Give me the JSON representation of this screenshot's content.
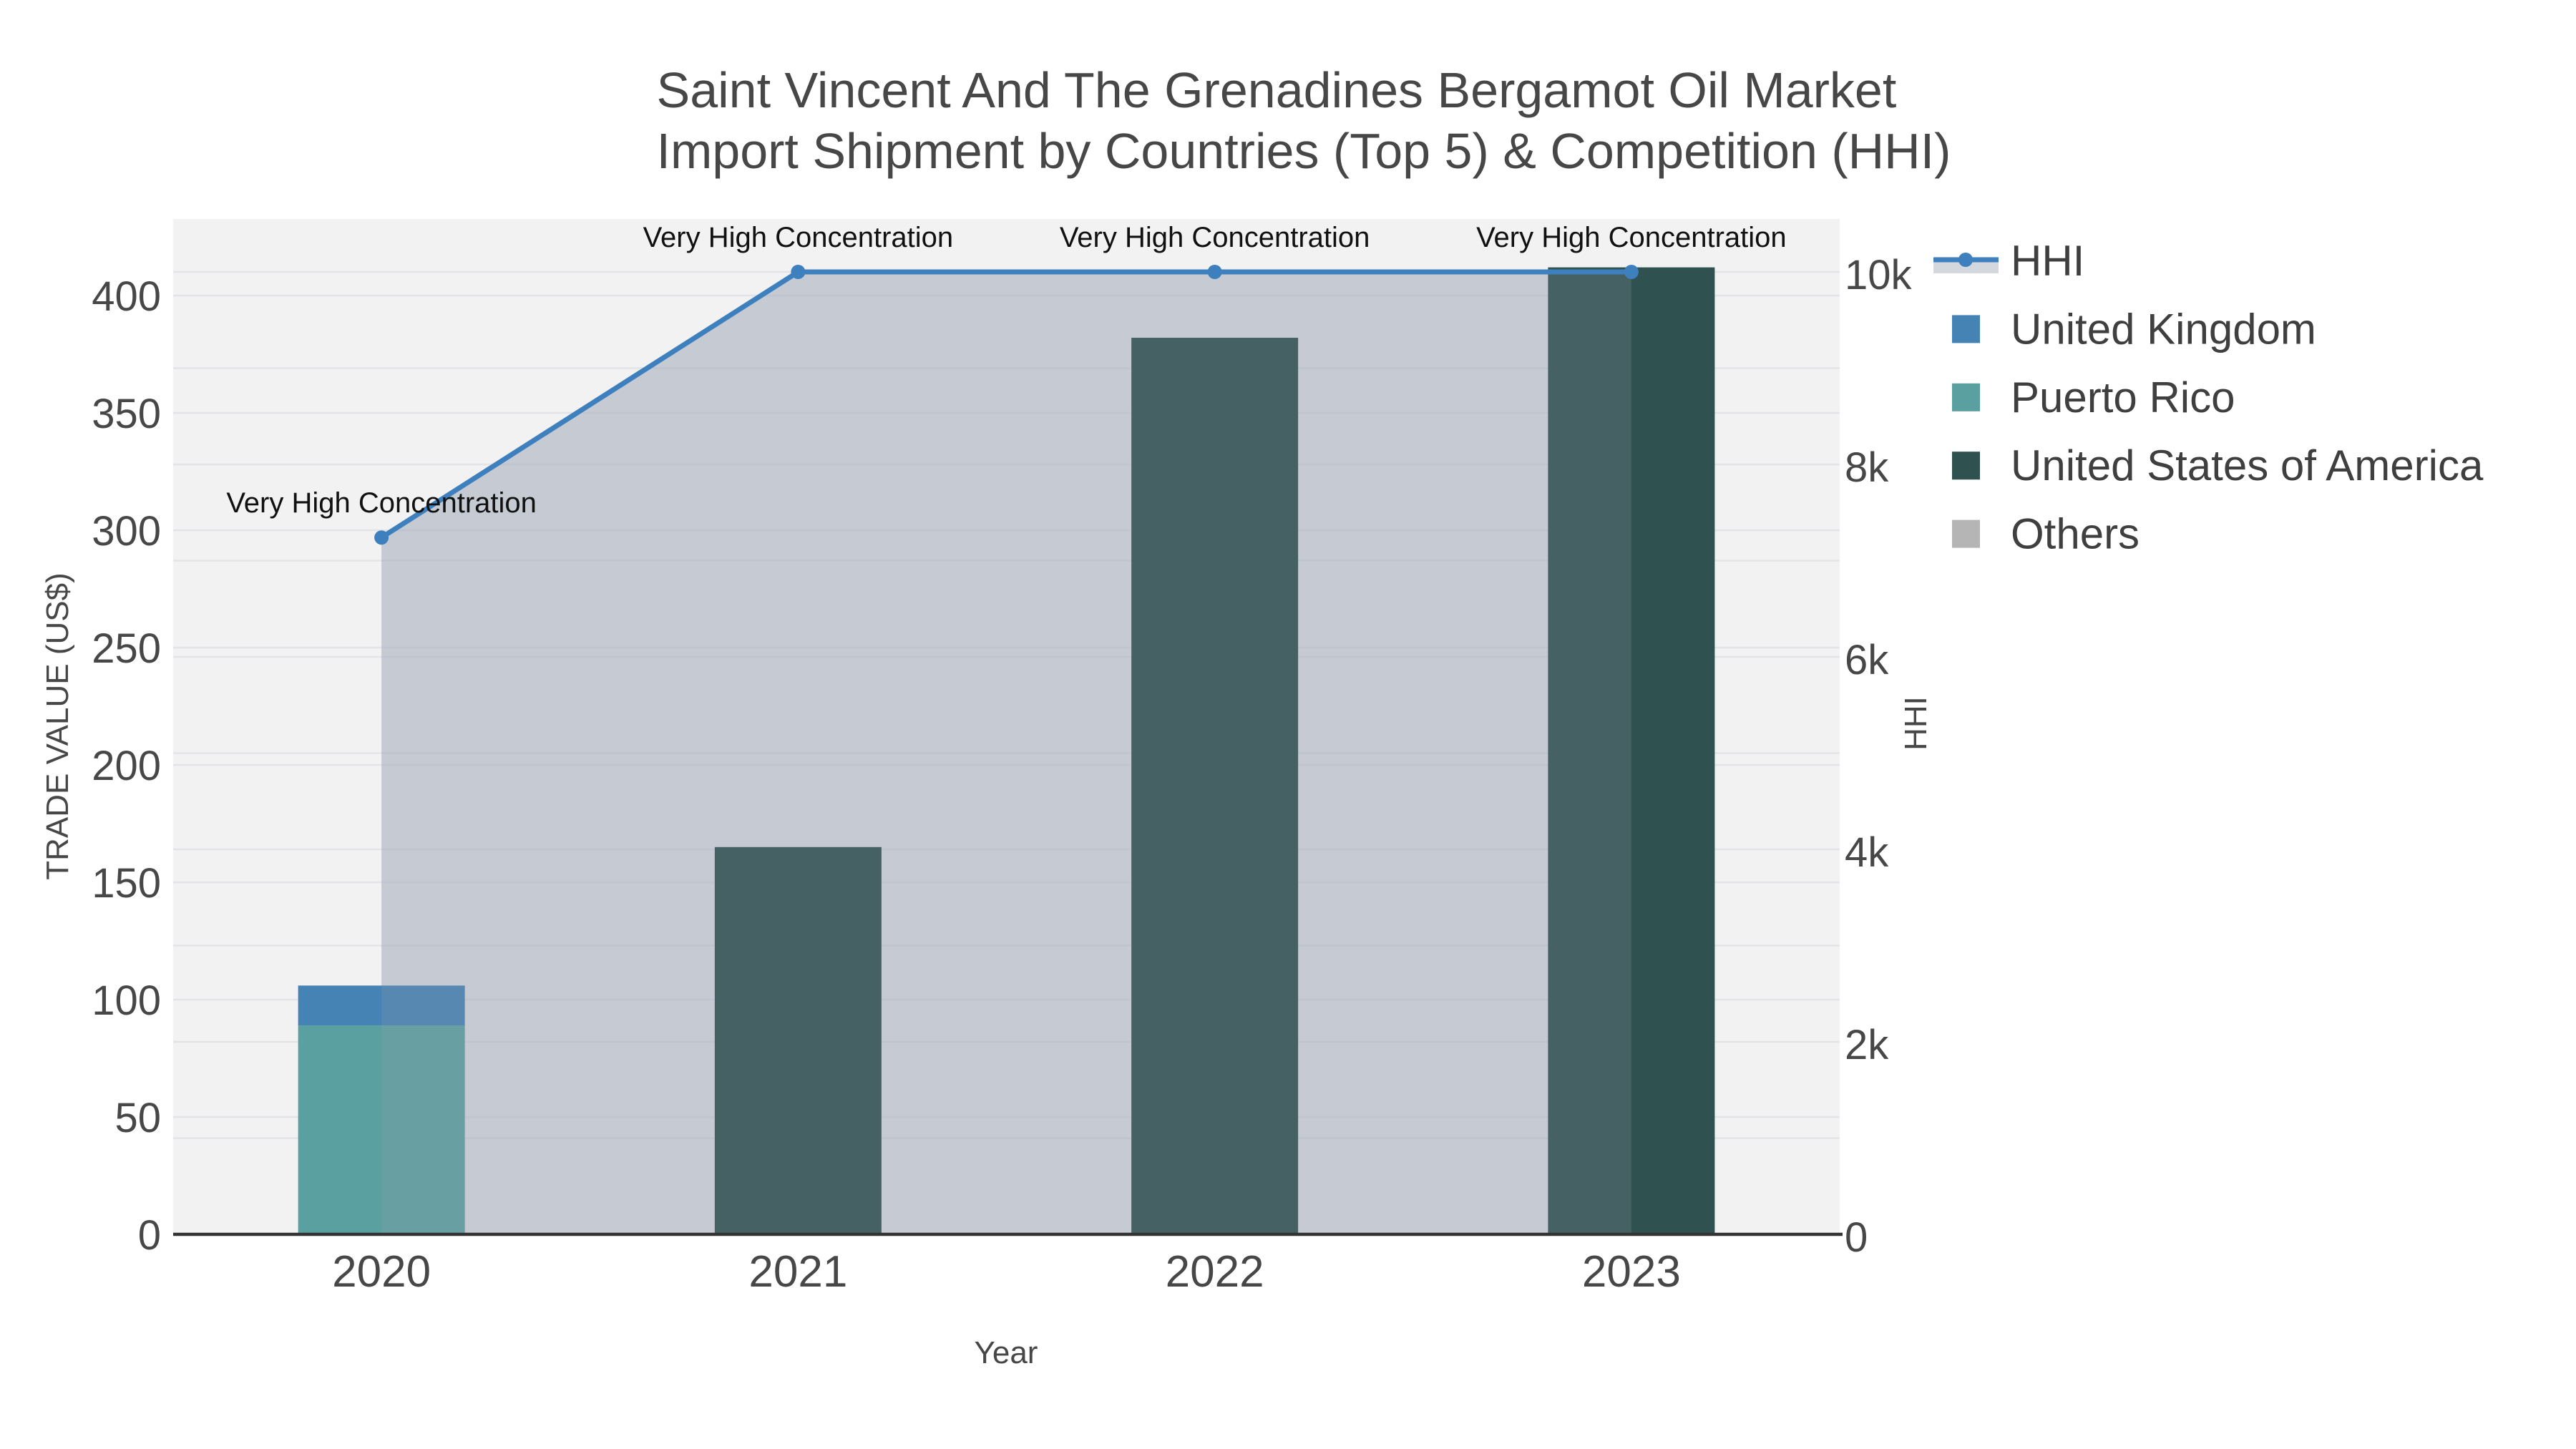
{
  "chart_data": {
    "type": "bar",
    "subtype": "stacked-bars-with-hhi-line-and-area",
    "title_lines": [
      "Saint Vincent And The Grenadines Bergamot Oil Market",
      "Import Shipment by Countries (Top 5) & Competition (HHI)"
    ],
    "categories": [
      "2020",
      "2021",
      "2022",
      "2023"
    ],
    "xlabel": "Year",
    "y_left": {
      "title": "TRADE VALUE (US$)",
      "tick_values": [
        0,
        50,
        100,
        150,
        200,
        250,
        300,
        350,
        400
      ],
      "tick_labels": [
        "0",
        "50",
        "100",
        "150",
        "200",
        "250",
        "300",
        "350",
        "400"
      ],
      "range": [
        0,
        432
      ]
    },
    "y_right": {
      "title": "HHI",
      "tick_values": [
        0,
        2000,
        4000,
        6000,
        8000,
        10000
      ],
      "tick_labels": [
        "0",
        "2k",
        "4k",
        "6k",
        "8k",
        "10k"
      ],
      "minor_grid_step": 1000,
      "range": [
        0,
        10550
      ]
    },
    "bar_series": [
      {
        "name": "United Kingdom",
        "color": "#4583B5",
        "values": [
          17,
          0,
          0,
          0
        ]
      },
      {
        "name": "Puerto Rico",
        "color": "#5AA0A1",
        "values": [
          89,
          0,
          0,
          0
        ]
      },
      {
        "name": "United States of America",
        "color": "#2F5150",
        "values": [
          0,
          165,
          382,
          412
        ]
      },
      {
        "name": "Others",
        "color": "#B5B5B5",
        "values": [
          0,
          0,
          0,
          0
        ]
      }
    ],
    "stack_order": [
      "Puerto Rico",
      "United Kingdom",
      "United States of America",
      "Others"
    ],
    "line_series": {
      "name": "HHI",
      "axis": "right",
      "color": "#3E80BE",
      "values": [
        7240,
        10000,
        10000,
        10000
      ]
    },
    "area_fill": {
      "under_bars_color": "rgba(173,183,200,0.45)",
      "over_bars_color": "rgba(150,156,168,0.22)",
      "legend_band_color": "#D4D8DE"
    },
    "annotations": [
      {
        "category": "2020",
        "text": "Very High Concentration"
      },
      {
        "category": "2021",
        "text": "Very High Concentration"
      },
      {
        "category": "2022",
        "text": "Very High Concentration"
      },
      {
        "category": "2023",
        "text": "Very High Concentration"
      }
    ],
    "legend": [
      {
        "label": "HHI",
        "marker": "line",
        "color": "#3E80BE"
      },
      {
        "label": "United Kingdom",
        "marker": "square",
        "color": "#4583B5"
      },
      {
        "label": "Puerto Rico",
        "marker": "square",
        "color": "#5AA0A1"
      },
      {
        "label": "United States of America",
        "marker": "square",
        "color": "#2F5150"
      },
      {
        "label": "Others",
        "marker": "square",
        "color": "#B5B5B5"
      }
    ],
    "style": {
      "plot_bg": "#F2F2F3",
      "grid_color": "#E3E4E7",
      "axis_line_color": "#333333",
      "text_color": "#474747",
      "annotation_color": "#111111"
    }
  }
}
